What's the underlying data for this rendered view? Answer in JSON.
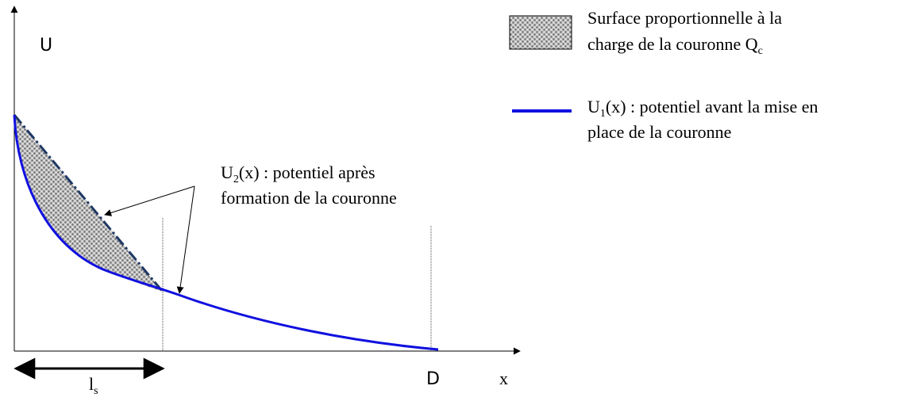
{
  "axes": {
    "y_label": "U",
    "x_label": "x",
    "d_mark": "D",
    "ls": {
      "main": "l",
      "sub": "s"
    }
  },
  "annotation": {
    "line1": {
      "main": "U",
      "sub": "2",
      "rest": "(x) : potentiel après"
    },
    "line2": "formation de la couronne"
  },
  "legend": [
    {
      "line1": "Surface proportionnelle à la",
      "line2": {
        "main": "charge de la couronne Q",
        "sub": "c"
      }
    },
    {
      "line1": {
        "main": "U",
        "sub": "1",
        "rest": "(x) : potentiel avant la mise en"
      },
      "line2": "place de la couronne"
    }
  ]
}
